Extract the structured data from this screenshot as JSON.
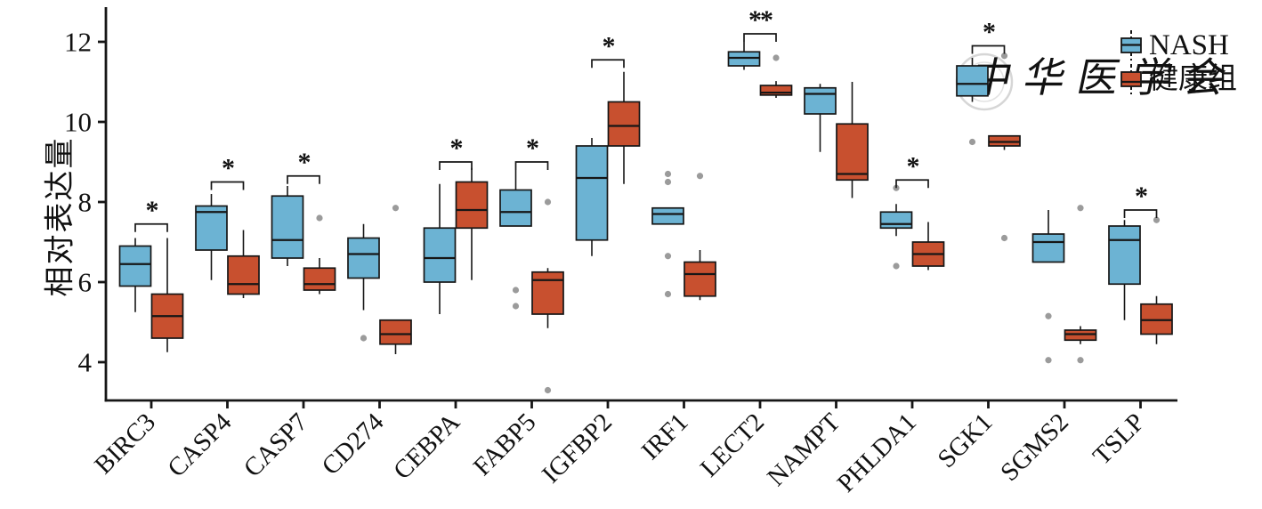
{
  "axes": {
    "y_label": "相对表达量",
    "y_ticks": [
      4,
      6,
      8,
      10,
      12
    ]
  },
  "legend": [
    {
      "label": "NASH",
      "color": "#6CB3D3"
    },
    {
      "label": "健康组",
      "color": "#C8502F"
    }
  ],
  "watermark": {
    "text": "中华医学会"
  },
  "style": {
    "nash_fill": "#6CB3D3",
    "healthy_fill": "#C8502F",
    "outlier_color": "#9B9B9B",
    "line_color": "#161616",
    "watermark_color": "#D6D6D6"
  },
  "chart_data": {
    "type": "boxplot",
    "title": "",
    "xlabel": "",
    "ylabel": "相对表达量",
    "ylim": [
      3.0,
      12.9
    ],
    "yticks": [
      4,
      6,
      8,
      10,
      12
    ],
    "grid": false,
    "legend_position": "top-right",
    "groups": [
      "NASH",
      "健康组"
    ],
    "categories": [
      "BIRC3",
      "CASP4",
      "CASP7",
      "CD274",
      "CEBPA",
      "FABP5",
      "IGFBP2",
      "IRF1",
      "LECT2",
      "NAMPT",
      "PHLDA1",
      "SGK1",
      "SGMS2",
      "TSLP"
    ],
    "significance_note": "* p<0.05, ** p<0.01 brackets over gene pairs",
    "boxes": [
      {
        "gene": "BIRC3",
        "sig": "*",
        "sig_y": 7.45,
        "nash": {
          "whislo": 5.25,
          "q1": 5.9,
          "med": 6.45,
          "q3": 6.9,
          "whishi": 7.1,
          "outliers": []
        },
        "healthy": {
          "whislo": 4.25,
          "q1": 4.6,
          "med": 5.15,
          "q3": 5.7,
          "whishi": 7.1,
          "outliers": []
        }
      },
      {
        "gene": "CASP4",
        "sig": "*",
        "sig_y": 8.5,
        "nash": {
          "whislo": 6.05,
          "q1": 6.8,
          "med": 7.75,
          "q3": 7.9,
          "whishi": 8.2,
          "outliers": []
        },
        "healthy": {
          "whislo": 5.6,
          "q1": 5.7,
          "med": 5.95,
          "q3": 6.65,
          "whishi": 7.3,
          "outliers": []
        }
      },
      {
        "gene": "CASP7",
        "sig": "*",
        "sig_y": 8.65,
        "nash": {
          "whislo": 6.4,
          "q1": 6.6,
          "med": 7.05,
          "q3": 8.15,
          "whishi": 8.4,
          "outliers": []
        },
        "healthy": {
          "whislo": 5.7,
          "q1": 5.8,
          "med": 5.95,
          "q3": 6.35,
          "whishi": 6.6,
          "outliers": [
            7.6
          ]
        }
      },
      {
        "gene": "CD274",
        "sig": null,
        "sig_y": null,
        "nash": {
          "whislo": 5.3,
          "q1": 6.1,
          "med": 6.7,
          "q3": 7.1,
          "whishi": 7.45,
          "outliers": [
            4.6
          ]
        },
        "healthy": {
          "whislo": 4.2,
          "q1": 4.45,
          "med": 4.7,
          "q3": 5.05,
          "whishi": 5.05,
          "outliers": [
            7.85
          ]
        }
      },
      {
        "gene": "CEBPA",
        "sig": "*",
        "sig_y": 9.0,
        "nash": {
          "whislo": 5.2,
          "q1": 6.0,
          "med": 6.6,
          "q3": 7.35,
          "whishi": 8.45,
          "outliers": []
        },
        "healthy": {
          "whislo": 6.05,
          "q1": 7.35,
          "med": 7.8,
          "q3": 8.5,
          "whishi": 8.85,
          "outliers": []
        }
      },
      {
        "gene": "FABP5",
        "sig": "*",
        "sig_y": 9.0,
        "nash": {
          "whislo": 7.4,
          "q1": 7.4,
          "med": 7.75,
          "q3": 8.3,
          "whishi": 8.8,
          "outliers": [
            5.8,
            5.4
          ]
        },
        "healthy": {
          "whislo": 4.85,
          "q1": 5.2,
          "med": 6.05,
          "q3": 6.25,
          "whishi": 6.35,
          "outliers": [
            8.0,
            3.3
          ]
        }
      },
      {
        "gene": "IGFBP2",
        "sig": "*",
        "sig_y": 11.55,
        "nash": {
          "whislo": 6.65,
          "q1": 7.05,
          "med": 8.6,
          "q3": 9.4,
          "whishi": 9.6,
          "outliers": []
        },
        "healthy": {
          "whislo": 8.45,
          "q1": 9.4,
          "med": 9.9,
          "q3": 10.5,
          "whishi": 11.25,
          "outliers": []
        }
      },
      {
        "gene": "IRF1",
        "sig": null,
        "sig_y": null,
        "nash": {
          "whislo": 7.45,
          "q1": 7.45,
          "med": 7.7,
          "q3": 7.85,
          "whishi": 7.85,
          "outliers": [
            8.7,
            8.5,
            6.65,
            5.7
          ]
        },
        "healthy": {
          "whislo": 5.55,
          "q1": 5.65,
          "med": 6.2,
          "q3": 6.5,
          "whishi": 6.8,
          "outliers": [
            8.65
          ]
        }
      },
      {
        "gene": "LECT2",
        "sig": "**",
        "sig_y": 12.2,
        "nash": {
          "whislo": 11.3,
          "q1": 11.4,
          "med": 11.6,
          "q3": 11.75,
          "whishi": 12.0,
          "outliers": []
        },
        "healthy": {
          "whislo": 10.6,
          "q1": 10.67,
          "med": 10.73,
          "q3": 10.91,
          "whishi": 11.02,
          "outliers": [
            11.6
          ]
        }
      },
      {
        "gene": "NAMPT",
        "sig": null,
        "sig_y": null,
        "nash": {
          "whislo": 9.25,
          "q1": 10.2,
          "med": 10.7,
          "q3": 10.85,
          "whishi": 10.95,
          "outliers": []
        },
        "healthy": {
          "whislo": 8.1,
          "q1": 8.55,
          "med": 8.7,
          "q3": 9.95,
          "whishi": 11.0,
          "outliers": []
        }
      },
      {
        "gene": "PHLDA1",
        "sig": "*",
        "sig_y": 8.55,
        "nash": {
          "whislo": 7.15,
          "q1": 7.35,
          "med": 7.45,
          "q3": 7.75,
          "whishi": 7.95,
          "outliers": [
            8.35,
            6.4
          ]
        },
        "healthy": {
          "whislo": 6.3,
          "q1": 6.4,
          "med": 6.7,
          "q3": 7.0,
          "whishi": 7.5,
          "outliers": []
        }
      },
      {
        "gene": "SGK1",
        "sig": "*",
        "sig_y": 11.9,
        "nash": {
          "whislo": 10.5,
          "q1": 10.65,
          "med": 10.95,
          "q3": 11.4,
          "whishi": 11.6,
          "outliers": [
            9.5
          ]
        },
        "healthy": {
          "whislo": 9.3,
          "q1": 9.4,
          "med": 9.5,
          "q3": 9.65,
          "whishi": 9.65,
          "outliers": [
            11.65,
            7.1
          ]
        }
      },
      {
        "gene": "SGMS2",
        "sig": null,
        "sig_y": null,
        "nash": {
          "whislo": 6.5,
          "q1": 6.5,
          "med": 7.0,
          "q3": 7.2,
          "whishi": 7.8,
          "outliers": [
            5.15,
            4.05
          ]
        },
        "healthy": {
          "whislo": 4.45,
          "q1": 4.55,
          "med": 4.7,
          "q3": 4.8,
          "whishi": 4.9,
          "outliers": [
            7.85,
            4.05
          ]
        }
      },
      {
        "gene": "TSLP",
        "sig": "*",
        "sig_y": 7.8,
        "nash": {
          "whislo": 5.05,
          "q1": 5.95,
          "med": 7.05,
          "q3": 7.4,
          "whishi": 7.55,
          "outliers": []
        },
        "healthy": {
          "whislo": 4.45,
          "q1": 4.7,
          "med": 5.05,
          "q3": 5.45,
          "whishi": 5.65,
          "outliers": [
            7.55
          ]
        }
      }
    ]
  }
}
